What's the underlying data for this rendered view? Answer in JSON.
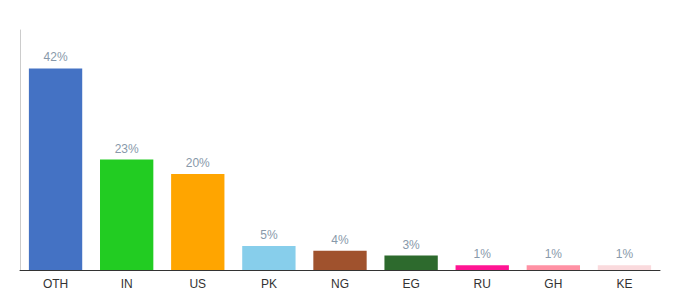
{
  "chart_data": {
    "type": "bar",
    "categories": [
      "OTH",
      "IN",
      "US",
      "PK",
      "NG",
      "EG",
      "RU",
      "GH",
      "KE"
    ],
    "values": [
      42,
      23,
      20,
      5,
      4,
      3,
      1,
      1,
      1
    ],
    "value_labels": [
      "42%",
      "23%",
      "20%",
      "5%",
      "4%",
      "3%",
      "1%",
      "1%",
      "1%"
    ],
    "colors": [
      "#4472C4",
      "#22CC22",
      "#FFA500",
      "#87CEEB",
      "#A0522D",
      "#2D6A2D",
      "#FF1493",
      "#FF91A4",
      "#FADADD"
    ],
    "ylim": [
      0,
      50
    ],
    "data_labels": true,
    "tick_labels": "x",
    "grid": false
  }
}
